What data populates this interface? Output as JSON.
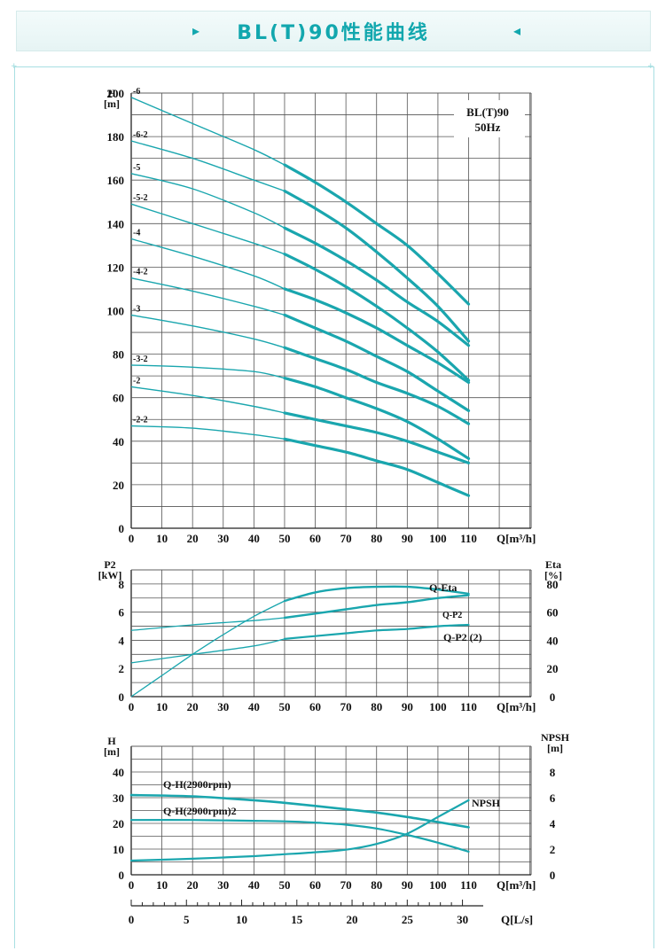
{
  "banner": {
    "title": "BL(T)90性能曲线",
    "left_arrow": "▸",
    "right_arrow": "◂"
  },
  "colors": {
    "curve": "#1aa6ae",
    "grid": "#555555",
    "grid_light": "#9a9a9a",
    "accent": "#12a7ae"
  },
  "chart_data": [
    {
      "type": "line",
      "id": "head",
      "title": "BL(T)90\n50Hz",
      "title_lines": [
        "BL(T)90",
        "50Hz"
      ],
      "ylabel_lines": [
        "H",
        "[m]"
      ],
      "xlabel": "Q[m³/h]",
      "xlim": [
        0,
        110
      ],
      "ylim": [
        0,
        200
      ],
      "xticks": [
        0,
        10,
        20,
        30,
        40,
        50,
        60,
        70,
        80,
        90,
        100,
        110
      ],
      "yticks": [
        0,
        20,
        40,
        60,
        80,
        100,
        120,
        140,
        160,
        180,
        200
      ],
      "series": [
        {
          "name": "-6",
          "x": [
            0,
            20,
            40,
            50,
            60,
            70,
            80,
            90,
            100,
            110
          ],
          "y": [
            198,
            186,
            174,
            167,
            159,
            150,
            140,
            130,
            117,
            103
          ]
        },
        {
          "name": "-6-2",
          "x": [
            0,
            20,
            40,
            50,
            60,
            70,
            80,
            90,
            100,
            110
          ],
          "y": [
            178,
            170,
            160,
            155,
            147,
            138,
            127,
            115,
            102,
            86
          ]
        },
        {
          "name": "-5",
          "x": [
            0,
            20,
            40,
            50,
            60,
            70,
            80,
            90,
            100,
            110
          ],
          "y": [
            163,
            156,
            145,
            138,
            131,
            123,
            114,
            104,
            95,
            84
          ]
        },
        {
          "name": "-5-2",
          "x": [
            0,
            20,
            40,
            50,
            60,
            70,
            80,
            90,
            100,
            110
          ],
          "y": [
            149,
            140,
            131,
            126,
            119,
            111,
            102,
            92,
            81,
            68
          ]
        },
        {
          "name": "-4",
          "x": [
            0,
            20,
            40,
            50,
            60,
            70,
            80,
            90,
            100,
            110
          ],
          "y": [
            133,
            125,
            116,
            110,
            105,
            99,
            92,
            84,
            76,
            67
          ]
        },
        {
          "name": "-4-2",
          "x": [
            0,
            20,
            40,
            50,
            60,
            70,
            80,
            90,
            100,
            110
          ],
          "y": [
            115,
            109,
            102,
            98,
            92,
            86,
            79,
            72,
            63,
            54
          ]
        },
        {
          "name": "-3",
          "x": [
            0,
            20,
            40,
            50,
            60,
            70,
            80,
            90,
            100,
            110
          ],
          "y": [
            98,
            93,
            87,
            83,
            78,
            73,
            67,
            62,
            56,
            48
          ]
        },
        {
          "name": "-3-2",
          "x": [
            0,
            20,
            40,
            50,
            60,
            70,
            80,
            90,
            100,
            110
          ],
          "y": [
            75,
            74,
            72,
            69,
            65,
            60,
            55,
            49,
            41,
            32
          ]
        },
        {
          "name": "-2",
          "x": [
            0,
            20,
            40,
            50,
            60,
            70,
            80,
            90,
            100,
            110
          ],
          "y": [
            65,
            61,
            56,
            53,
            50,
            47,
            44,
            40,
            35,
            30
          ]
        },
        {
          "name": "-2-2",
          "x": [
            0,
            20,
            40,
            50,
            60,
            70,
            80,
            90,
            100,
            110
          ],
          "y": [
            47,
            46,
            43,
            41,
            38,
            35,
            31,
            27,
            21,
            15
          ]
        }
      ]
    },
    {
      "type": "line",
      "id": "power",
      "ylabel_lines": [
        "P2",
        "[kW]"
      ],
      "y2label_lines": [
        "Eta",
        "[%]"
      ],
      "xlabel": "Q[m³/h]",
      "xlim": [
        0,
        110
      ],
      "ylim": [
        0,
        9
      ],
      "y2lim": [
        0,
        90
      ],
      "xticks": [
        0,
        10,
        20,
        30,
        40,
        50,
        60,
        70,
        80,
        90,
        100,
        110
      ],
      "yticks": [
        0,
        2,
        4,
        6,
        8
      ],
      "y2ticks": [
        0,
        20,
        40,
        60,
        80
      ],
      "series": [
        {
          "name": "Q-Eta",
          "axis": "right",
          "x": [
            0,
            10,
            20,
            30,
            40,
            50,
            60,
            70,
            80,
            90,
            100,
            110
          ],
          "y": [
            0,
            15,
            30,
            44,
            57,
            68,
            74,
            77,
            78,
            78,
            76,
            73
          ]
        },
        {
          "name": "Q-P2",
          "axis": "left",
          "x": [
            0,
            20,
            40,
            50,
            60,
            70,
            80,
            90,
            100,
            110
          ],
          "y": [
            4.7,
            5.1,
            5.4,
            5.6,
            5.9,
            6.2,
            6.5,
            6.7,
            7.0,
            7.2
          ]
        },
        {
          "name": "Q-P2 (2)",
          "axis": "left",
          "x": [
            0,
            20,
            40,
            50,
            60,
            70,
            80,
            90,
            100,
            110
          ],
          "y": [
            2.4,
            3.0,
            3.6,
            4.1,
            4.3,
            4.5,
            4.7,
            4.8,
            5.0,
            5.1
          ]
        }
      ]
    },
    {
      "type": "line",
      "id": "npsh",
      "ylabel_lines": [
        "H",
        "[m]"
      ],
      "y2label_lines": [
        "NPSH",
        "[m]"
      ],
      "xlabel": "Q[m³/h]",
      "xlabel2": "Q[L/s]",
      "xlim": [
        0,
        110
      ],
      "ylim": [
        0,
        50
      ],
      "y2lim": [
        0,
        10
      ],
      "xticks": [
        0,
        10,
        20,
        30,
        40,
        50,
        60,
        70,
        80,
        90,
        100,
        110
      ],
      "yticks": [
        0,
        10,
        20,
        30,
        40
      ],
      "y2ticks": [
        0,
        2,
        4,
        6,
        8
      ],
      "x2ticks": [
        0,
        5,
        10,
        15,
        20,
        25,
        30
      ],
      "series": [
        {
          "name": "Q-H(2900rpm)",
          "axis": "left",
          "x": [
            0,
            20,
            40,
            50,
            60,
            70,
            80,
            90,
            100,
            110
          ],
          "y": [
            31,
            30.5,
            29,
            28,
            26.8,
            25.5,
            24.2,
            22.5,
            20.5,
            18.5
          ]
        },
        {
          "name": "Q-H(2900rpm)2",
          "axis": "left",
          "x": [
            0,
            20,
            40,
            50,
            60,
            70,
            80,
            90,
            100,
            110
          ],
          "y": [
            21.3,
            21.3,
            21,
            20.8,
            20.3,
            19.5,
            18,
            15.5,
            12.5,
            9
          ]
        },
        {
          "name": "NPSH",
          "axis": "right",
          "x": [
            0,
            20,
            40,
            50,
            60,
            70,
            80,
            90,
            100,
            110
          ],
          "y": [
            1.1,
            1.25,
            1.45,
            1.6,
            1.75,
            1.95,
            2.4,
            3.2,
            4.5,
            5.8
          ]
        }
      ]
    }
  ]
}
